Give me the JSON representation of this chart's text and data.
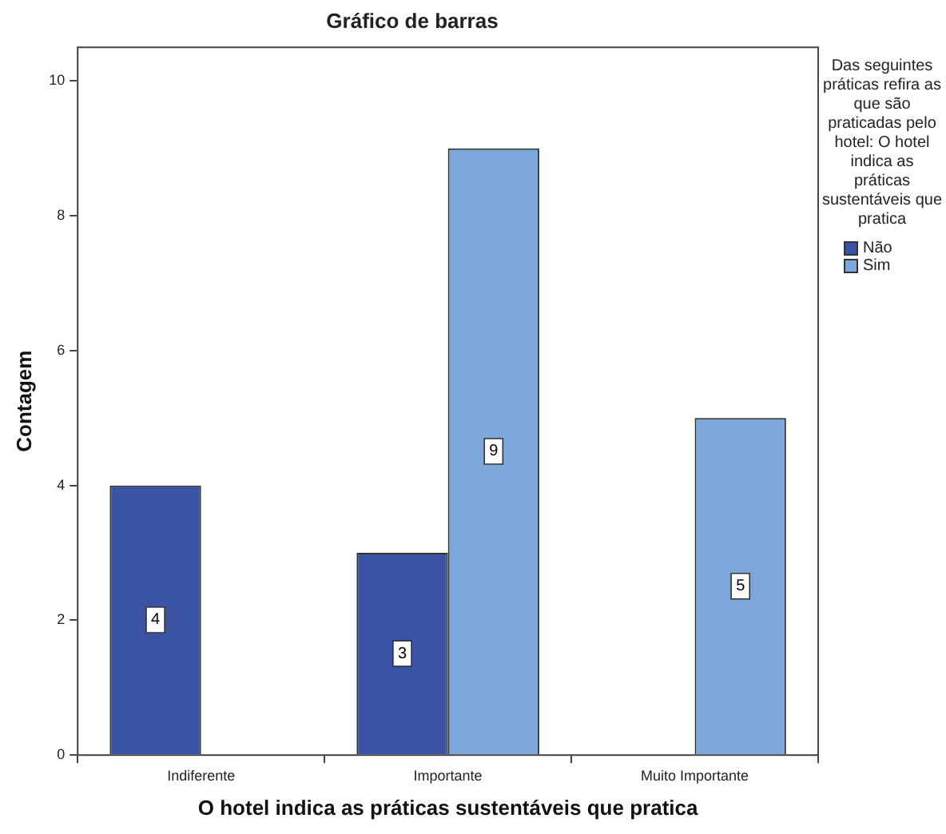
{
  "chart_data": {
    "type": "bar",
    "title": "Gráfico de barras",
    "xlabel": "O hotel indica as práticas sustentáveis que pratica",
    "ylabel": "Contagem",
    "legend_title": "Das seguintes práticas refira as que são praticadas pelo hotel: O hotel indica as práticas sustentáveis que pratica",
    "categories": [
      "Indiferente",
      "Importante",
      "Muito Importante"
    ],
    "series": [
      {
        "name": "Não",
        "color": "#3a53a4",
        "values": [
          4,
          3,
          null
        ]
      },
      {
        "name": "Sim",
        "color": "#7ba7da",
        "values": [
          null,
          9,
          5
        ]
      }
    ],
    "ylim": [
      0,
      10.5
    ],
    "yticks": [
      0,
      2,
      4,
      6,
      8,
      10
    ],
    "grid": false,
    "legend": "right",
    "data_labels": true
  }
}
